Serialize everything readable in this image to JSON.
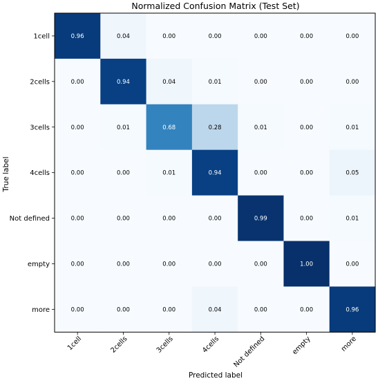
{
  "chart_data": {
    "type": "heatmap",
    "title": "Normalized Confusion Matrix (Test Set)",
    "xlabel": "Predicted label",
    "ylabel": "True label",
    "x_categories": [
      "1cell",
      "2cells",
      "3cells",
      "4cells",
      "Not defined",
      "empty",
      "more"
    ],
    "y_categories": [
      "1cell",
      "2cells",
      "3cells",
      "4cells",
      "Not defined",
      "empty",
      "more"
    ],
    "values": [
      [
        0.96,
        0.04,
        0.0,
        0.0,
        0.0,
        0.0,
        0.0
      ],
      [
        0.0,
        0.94,
        0.04,
        0.01,
        0.0,
        0.0,
        0.0
      ],
      [
        0.0,
        0.01,
        0.68,
        0.28,
        0.01,
        0.0,
        0.01
      ],
      [
        0.0,
        0.0,
        0.01,
        0.94,
        0.0,
        0.0,
        0.05
      ],
      [
        0.0,
        0.0,
        0.0,
        0.0,
        0.99,
        0.0,
        0.01
      ],
      [
        0.0,
        0.0,
        0.0,
        0.0,
        0.0,
        1.0,
        0.0
      ],
      [
        0.0,
        0.0,
        0.0,
        0.04,
        0.0,
        0.0,
        0.96
      ]
    ],
    "value_format": "0.00",
    "colormap": "Blues",
    "vmin": 0,
    "vmax": 1,
    "grid": false,
    "legend": "none"
  }
}
